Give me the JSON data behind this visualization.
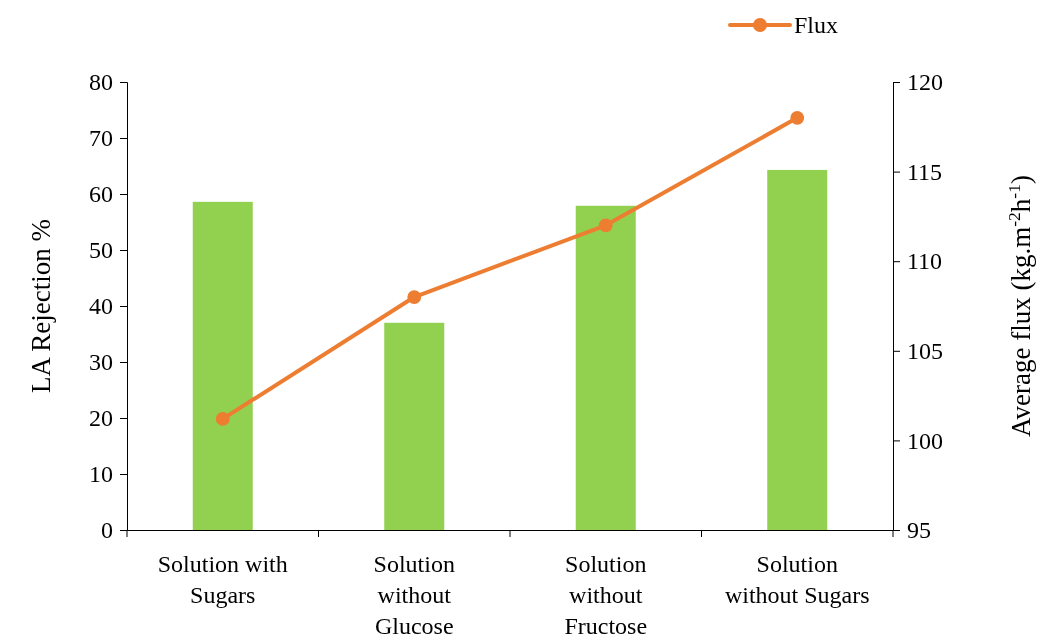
{
  "chart_data": {
    "type": "bar",
    "categories": [
      "Solution with Sugars",
      "Solution without Glucose",
      "Solution without Fructose",
      "Solution without Sugars"
    ],
    "ylabel": "LA  Rejection %",
    "y2label": "Average flux (kg.m$^{-2}$h$^{-1}$)",
    "ylim": [
      0,
      80
    ],
    "yticks": [
      0,
      10,
      20,
      30,
      40,
      50,
      60,
      70,
      80
    ],
    "y2lim": [
      95,
      120
    ],
    "y2ticks": [
      95,
      100,
      105,
      110,
      115,
      120
    ],
    "grid": false,
    "legend": "top right",
    "marker": "circle",
    "line_style": "solid",
    "series": [
      {
        "color": "#92d050",
        "values": [
          58.6,
          37.0,
          57.9,
          64.3
        ]
      },
      {
        "type": "line",
        "name": "Flux",
        "axis": "y2",
        "color": "#ed7d31",
        "values": [
          101.2,
          108.0,
          112.0,
          118.0
        ]
      }
    ]
  }
}
